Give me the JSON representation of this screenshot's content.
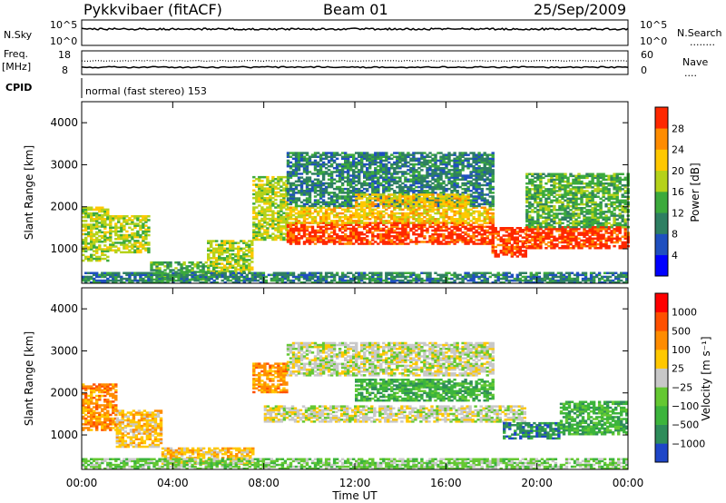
{
  "header": {
    "radar": "Pykkvibaer (fitACF)",
    "beam": "Beam 01",
    "date": "25/Sep/2009"
  },
  "panels": {
    "nsky": {
      "label": "N.Sky",
      "left_ticks": [
        "10^5",
        "10^0"
      ],
      "right_ticks": [
        "10^5",
        "10^0"
      ],
      "right_label": "N.Search",
      "right_marker": "........"
    },
    "freq": {
      "label_line1": "Freq.",
      "label_line2": "[MHz]",
      "left_ticks": [
        "18",
        "8"
      ],
      "right_ticks": [
        "60",
        "0"
      ],
      "right_label": "Nave",
      "right_marker": "...."
    },
    "cpid": {
      "label": "CPID",
      "mode": "normal (fast stereo) 153"
    }
  },
  "chart_data": [
    {
      "type": "heatmap",
      "name": "power",
      "ylabel": "Slant Range [km]",
      "ylim": [
        180,
        4500
      ],
      "yticks": [
        "1000",
        "2000",
        "3000",
        "4000"
      ],
      "colorbar": {
        "label": "Power [dB]",
        "ticks": [
          "4",
          "8",
          "12",
          "16",
          "20",
          "24",
          "28"
        ],
        "colors": [
          "#0000ff",
          "#1f4fbf",
          "#2e7f62",
          "#3caa3c",
          "#b5d21a",
          "#ffc800",
          "#ff8c00",
          "#ff2800"
        ]
      },
      "regions": [
        {
          "t0": 0.0,
          "t1": 1.2,
          "r0": 700,
          "r1": 2000,
          "level": 4
        },
        {
          "t0": 1.2,
          "t1": 3.0,
          "r0": 900,
          "r1": 1800,
          "level": 4
        },
        {
          "t0": 3.0,
          "t1": 5.5,
          "r0": 250,
          "r1": 700,
          "level": 3
        },
        {
          "t0": 5.5,
          "t1": 7.5,
          "r0": 400,
          "r1": 1200,
          "level": 4
        },
        {
          "t0": 7.5,
          "t1": 9.0,
          "r0": 1200,
          "r1": 2700,
          "level": 4
        },
        {
          "t0": 9.0,
          "t1": 18.0,
          "r0": 1100,
          "r1": 1600,
          "level": 7
        },
        {
          "t0": 9.0,
          "t1": 18.0,
          "r0": 1600,
          "r1": 2000,
          "level": 5
        },
        {
          "t0": 9.0,
          "t1": 18.0,
          "r0": 2000,
          "r1": 3300,
          "level": 2
        },
        {
          "t0": 12.0,
          "t1": 17.0,
          "r0": 2000,
          "r1": 2300,
          "level": 5
        },
        {
          "t0": 18.0,
          "t1": 19.5,
          "r0": 800,
          "r1": 1500,
          "level": 7
        },
        {
          "t0": 19.5,
          "t1": 24.0,
          "r0": 1000,
          "r1": 1500,
          "level": 7
        },
        {
          "t0": 19.5,
          "t1": 24.0,
          "r0": 1500,
          "r1": 2800,
          "level": 3
        },
        {
          "t0": 0.0,
          "t1": 24.0,
          "r0": 180,
          "r1": 450,
          "level": 2
        }
      ]
    },
    {
      "type": "heatmap",
      "name": "velocity",
      "ylabel": "Slant Range [km]",
      "ylim": [
        180,
        4500
      ],
      "yticks": [
        "1000",
        "2000",
        "3000",
        "4000"
      ],
      "colorbar": {
        "label": "Velocity [m s⁻¹]",
        "ticks": [
          "1000",
          "500",
          "100",
          "25",
          "−25",
          "−100",
          "−500",
          "−1000"
        ],
        "colors": [
          "#1e46c8",
          "#2e8c5a",
          "#3cb43c",
          "#64c832",
          "#c8c8c8",
          "#ffc800",
          "#ff8c00",
          "#ff5000",
          "#ff0000"
        ]
      },
      "regions": [
        {
          "t0": 0.0,
          "t1": 1.5,
          "r0": 1100,
          "r1": 2200,
          "level": 6
        },
        {
          "t0": 1.5,
          "t1": 3.5,
          "r0": 700,
          "r1": 1600,
          "level": 5
        },
        {
          "t0": 3.5,
          "t1": 7.5,
          "r0": 300,
          "r1": 700,
          "level": 5
        },
        {
          "t0": 7.5,
          "t1": 9.0,
          "r0": 2000,
          "r1": 2700,
          "level": 6
        },
        {
          "t0": 8.0,
          "t1": 19.5,
          "r0": 1300,
          "r1": 1700,
          "level": 4
        },
        {
          "t0": 9.0,
          "t1": 18.0,
          "r0": 2400,
          "r1": 3200,
          "level": 4
        },
        {
          "t0": 12.0,
          "t1": 18.0,
          "r0": 1800,
          "r1": 2300,
          "level": 2
        },
        {
          "t0": 18.5,
          "t1": 21.0,
          "r0": 900,
          "r1": 1300,
          "level": 1
        },
        {
          "t0": 21.0,
          "t1": 24.0,
          "r0": 1000,
          "r1": 1800,
          "level": 2
        },
        {
          "t0": 0.0,
          "t1": 24.0,
          "r0": 180,
          "r1": 450,
          "level": 3
        }
      ]
    }
  ],
  "xaxis": {
    "label": "Time UT",
    "ticks": [
      "00:00",
      "04:00",
      "08:00",
      "12:00",
      "16:00",
      "20:00",
      "00:00"
    ]
  }
}
